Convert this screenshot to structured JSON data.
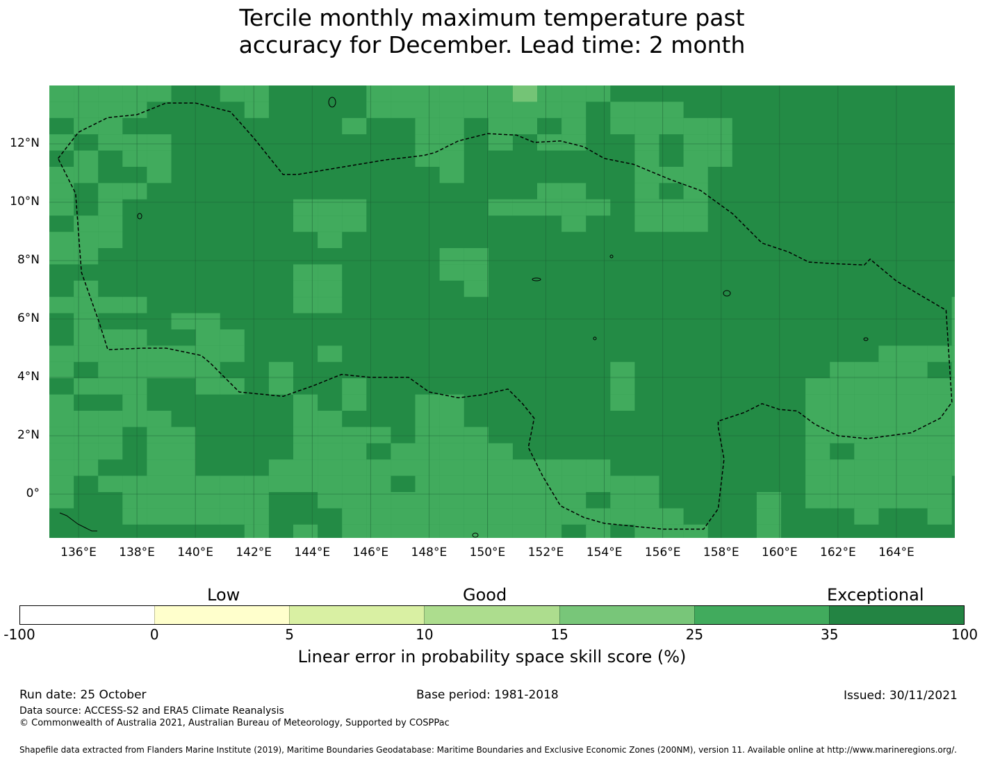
{
  "title": {
    "line1": "Tercile monthly maximum temperature past",
    "line2": "accuracy for December. Lead time: 2 month"
  },
  "map": {
    "lon_range": [
      135,
      166
    ],
    "lat_range": [
      -1.5,
      14
    ],
    "lat_ticks": [
      {
        "value": 12,
        "label": "12°N"
      },
      {
        "value": 10,
        "label": "10°N"
      },
      {
        "value": 8,
        "label": "8°N"
      },
      {
        "value": 6,
        "label": "6°N"
      },
      {
        "value": 4,
        "label": "4°N"
      },
      {
        "value": 2,
        "label": "2°N"
      },
      {
        "value": 0,
        "label": "0°"
      }
    ],
    "lon_ticks": [
      {
        "value": 136,
        "label": "136°E"
      },
      {
        "value": 138,
        "label": "138°E"
      },
      {
        "value": 140,
        "label": "140°E"
      },
      {
        "value": 142,
        "label": "142°E"
      },
      {
        "value": 144,
        "label": "144°E"
      },
      {
        "value": 146,
        "label": "146°E"
      },
      {
        "value": 148,
        "label": "148°E"
      },
      {
        "value": 150,
        "label": "150°E"
      },
      {
        "value": 152,
        "label": "152°E"
      },
      {
        "value": 154,
        "label": "154°E"
      },
      {
        "value": 156,
        "label": "156°E"
      },
      {
        "value": 158,
        "label": "158°E"
      },
      {
        "value": 160,
        "label": "160°E"
      },
      {
        "value": 162,
        "label": "162°E"
      },
      {
        "value": 164,
        "label": "164°E"
      }
    ],
    "colors": {
      "exceptional": "#238b45",
      "good_high": "#41ab5d",
      "good_mid": "#74c476",
      "grid": "#1b5e33",
      "boundary": "#000000"
    },
    "eez_boundary": [
      [
        135.3,
        11.5
      ],
      [
        136.0,
        12.4
      ],
      [
        137.0,
        12.9
      ],
      [
        138.0,
        13.0
      ],
      [
        139.0,
        13.4
      ],
      [
        140.0,
        13.4
      ],
      [
        141.2,
        13.1
      ],
      [
        142.0,
        12.2
      ],
      [
        143.0,
        10.95
      ],
      [
        143.5,
        10.95
      ],
      [
        145.0,
        11.2
      ],
      [
        146.5,
        11.45
      ],
      [
        147.8,
        11.6
      ],
      [
        148.2,
        11.7
      ],
      [
        149.0,
        12.1
      ],
      [
        150.0,
        12.35
      ],
      [
        151.0,
        12.3
      ],
      [
        151.6,
        12.05
      ],
      [
        152.5,
        12.1
      ],
      [
        153.3,
        11.9
      ],
      [
        154.0,
        11.5
      ],
      [
        155.0,
        11.3
      ],
      [
        156.2,
        10.8
      ],
      [
        157.3,
        10.4
      ],
      [
        158.4,
        9.6
      ],
      [
        159.4,
        8.6
      ],
      [
        160.3,
        8.3
      ],
      [
        161.0,
        7.95
      ],
      [
        161.8,
        7.9
      ],
      [
        162.9,
        7.85
      ],
      [
        163.1,
        8.05
      ],
      [
        164.0,
        7.3
      ],
      [
        165.7,
        6.3
      ],
      [
        165.9,
        3.15
      ],
      [
        165.5,
        2.6
      ],
      [
        164.5,
        2.1
      ],
      [
        163.0,
        1.9
      ],
      [
        162.0,
        2.0
      ],
      [
        161.2,
        2.4
      ],
      [
        160.6,
        2.85
      ],
      [
        160.0,
        2.9
      ],
      [
        159.4,
        3.1
      ],
      [
        158.8,
        2.8
      ],
      [
        157.9,
        2.5
      ],
      [
        157.9,
        2.3
      ],
      [
        158.1,
        1.2
      ],
      [
        157.9,
        -0.5
      ],
      [
        157.4,
        -1.2
      ],
      [
        156.0,
        -1.2
      ],
      [
        154.0,
        -1.0
      ],
      [
        153.3,
        -0.8
      ],
      [
        152.5,
        -0.4
      ],
      [
        151.9,
        0.6
      ],
      [
        151.4,
        1.6
      ],
      [
        151.6,
        2.6
      ],
      [
        151.2,
        3.1
      ],
      [
        150.7,
        3.6
      ],
      [
        149.8,
        3.4
      ],
      [
        149.0,
        3.3
      ],
      [
        148.0,
        3.5
      ],
      [
        147.3,
        4.0
      ],
      [
        146.0,
        4.0
      ],
      [
        145.0,
        4.1
      ],
      [
        144.0,
        3.7
      ],
      [
        143.0,
        3.35
      ],
      [
        141.5,
        3.5
      ],
      [
        140.5,
        4.5
      ],
      [
        140.2,
        4.75
      ],
      [
        139.0,
        5.0
      ],
      [
        138.2,
        5.0
      ],
      [
        137.0,
        4.95
      ],
      [
        136.7,
        5.9
      ],
      [
        136.1,
        7.6
      ],
      [
        135.9,
        10.3
      ],
      [
        135.3,
        11.5
      ]
    ],
    "skill_legend_note": "cells shown in exceptional (dark) and good (medium) classes"
  },
  "colorbar": {
    "categories": [
      {
        "label": "Low"
      },
      {
        "label": "Good"
      },
      {
        "label": "Exceptional"
      }
    ],
    "bins": [
      {
        "color": "#ffffff"
      },
      {
        "color": "#ffffcc"
      },
      {
        "color": "#d9f0a3"
      },
      {
        "color": "#addd8e"
      },
      {
        "color": "#78c679"
      },
      {
        "color": "#41ab5d"
      },
      {
        "color": "#238443"
      }
    ],
    "ticks": [
      "-100",
      "0",
      "5",
      "10",
      "15",
      "25",
      "35",
      "100"
    ],
    "title": "Linear error in probability space skill score (%)"
  },
  "footer": {
    "run_date": "Run date: 25 October",
    "base_period": "Base period: 1981-2018",
    "issued": "Issued: 30/11/2021",
    "data_source": "Data source: ACCESS-S2 and ERA5 Climate Reanalysis",
    "copyright": "© Commonwealth of Australia 2021, Australian Bureau of Meteorology, Supported by COSPPac",
    "shapefile": "Shapefile data extracted from Flanders Marine Institute (2019), Maritime Boundaries Geodatabase: Maritime Boundaries and Exclusive Economic Zones (200NM), version 11. Available online at http://www.marineregions.org/."
  }
}
